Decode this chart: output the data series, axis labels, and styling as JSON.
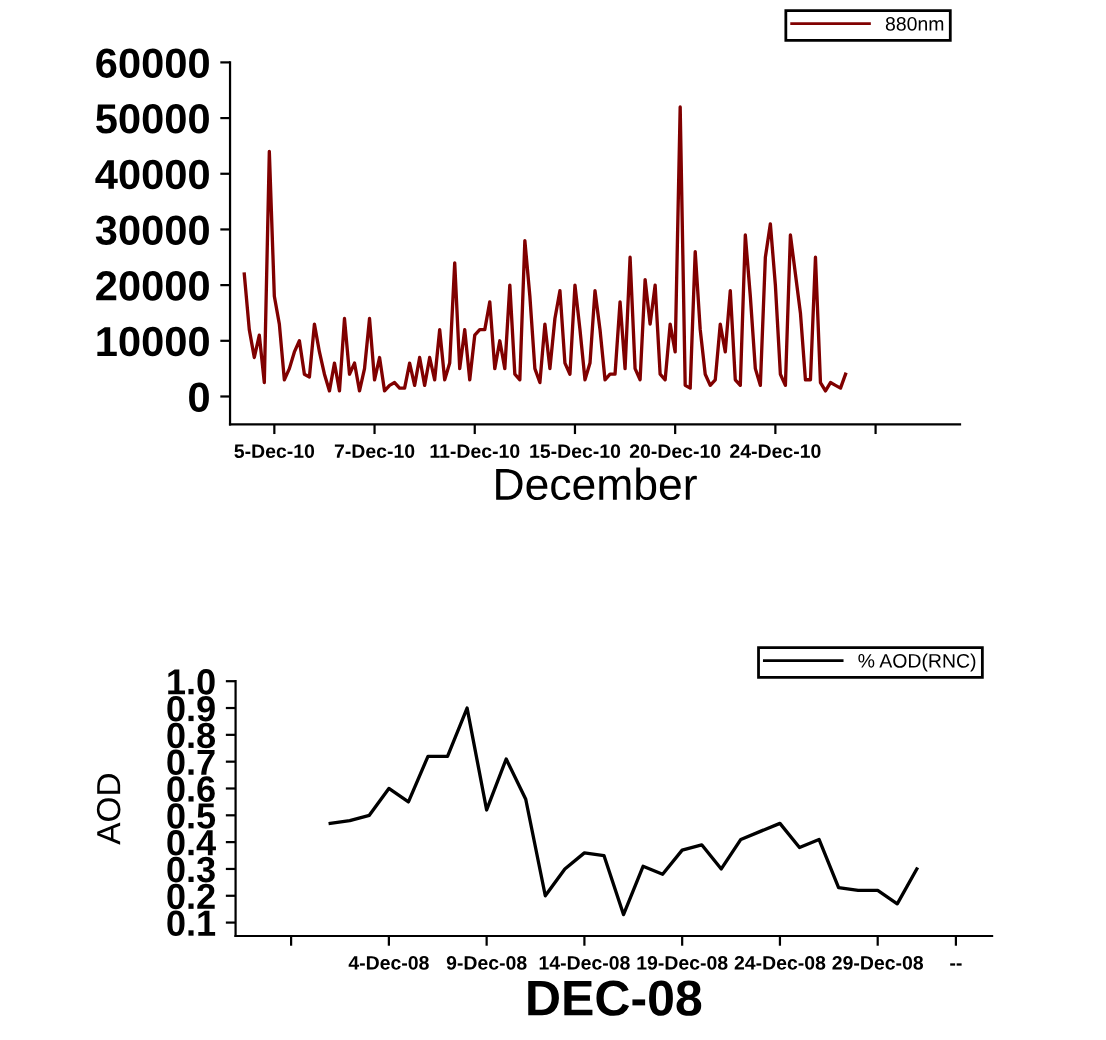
{
  "chart_data": [
    {
      "type": "line",
      "xlabel": "December",
      "legend": "top right",
      "grid": false,
      "ylim": [
        -5000,
        60000
      ],
      "yticks": [
        0,
        10000,
        20000,
        30000,
        40000,
        50000,
        60000
      ],
      "categories": [
        null,
        null,
        null,
        null,
        null,
        null,
        "5-Dec-10",
        null,
        null,
        null,
        null,
        null,
        null,
        null,
        null,
        null,
        null,
        null,
        null,
        null,
        null,
        null,
        null,
        null,
        null,
        null,
        "7-Dec-10",
        null,
        null,
        null,
        null,
        null,
        null,
        null,
        null,
        null,
        null,
        null,
        null,
        null,
        null,
        null,
        null,
        null,
        null,
        null,
        "11-Dec-10",
        null,
        null,
        null,
        null,
        null,
        null,
        null,
        null,
        null,
        null,
        null,
        null,
        null,
        null,
        null,
        null,
        null,
        null,
        null,
        "15-Dec-10",
        null,
        null,
        null,
        null,
        null,
        null,
        null,
        null,
        null,
        null,
        null,
        null,
        null,
        null,
        null,
        null,
        null,
        null,
        null,
        "20-Dec-10",
        null,
        null,
        null,
        null,
        null,
        null,
        null,
        null,
        null,
        null,
        null,
        null,
        null,
        null,
        null,
        null,
        null,
        null,
        null,
        "24-Dec-10",
        null,
        null,
        null,
        null,
        null,
        null,
        null,
        null,
        null,
        null,
        null,
        null,
        null,
        null,
        null,
        null,
        null,
        null,
        null,
        null,
        null,
        null,
        null,
        null,
        null,
        null,
        null,
        null,
        null,
        null
      ],
      "series": [
        {
          "name": "880nm",
          "color": "#800000",
          "values": [
            22000,
            12000,
            7000,
            11000,
            2500,
            44000,
            18000,
            13000,
            3000,
            5000,
            8000,
            10000,
            4000,
            3500,
            13000,
            8000,
            4000,
            1000,
            6000,
            1000,
            14000,
            4000,
            6000,
            1000,
            5000,
            14000,
            3000,
            7000,
            1000,
            2000,
            2500,
            1500,
            1500,
            6000,
            2000,
            7000,
            2000,
            7000,
            3000,
            12000,
            3000,
            6000,
            24000,
            5000,
            12000,
            3000,
            11000,
            12000,
            12000,
            17000,
            5000,
            10000,
            5000,
            20000,
            4000,
            3000,
            28000,
            18000,
            5000,
            2500,
            13000,
            5000,
            14000,
            19000,
            6000,
            4000,
            20000,
            12000,
            3000,
            6000,
            19000,
            12000,
            3000,
            4000,
            4000,
            17000,
            5000,
            25000,
            5000,
            3000,
            21000,
            13000,
            20000,
            4000,
            3000,
            13000,
            8000,
            52000,
            2000,
            1500,
            26000,
            12000,
            4000,
            2000,
            3000,
            13000,
            8000,
            19000,
            3000,
            2000,
            29000,
            18000,
            5000,
            2000,
            25000,
            31000,
            20000,
            4000,
            2000,
            29000,
            22000,
            15000,
            3000,
            3000,
            25000,
            2500,
            1000,
            2500,
            2000,
            1500,
            4000,
            null,
            null,
            null,
            null,
            null,
            null,
            null,
            null,
            null,
            null,
            null,
            null,
            null,
            null,
            null,
            null
          ]
        }
      ]
    },
    {
      "type": "line",
      "xlabel": "DEC-08",
      "ylabel": "AOD",
      "legend": "top right",
      "grid": false,
      "ylim": [
        0.05,
        1.0
      ],
      "yticks": [
        {
          "value": 0.1,
          "label": "0.1"
        },
        {
          "value": 0.2,
          "label": "0.2"
        },
        {
          "value": 0.3,
          "label": "0.3"
        },
        {
          "value": 0.4,
          "label": "0.4"
        },
        {
          "value": 0.5,
          "label": "0.5"
        },
        {
          "value": 0.6,
          "label": "0.6"
        },
        {
          "value": 0.7,
          "label": "0.7"
        },
        {
          "value": 0.8,
          "label": "0.8"
        },
        {
          "value": 0.9,
          "label": "0.9"
        },
        {
          "value": 1.0,
          "label": "1.0"
        }
      ],
      "categories": [
        null,
        null,
        null,
        null,
        null,
        null,
        null,
        "4-Dec-08",
        null,
        null,
        null,
        null,
        "9-Dec-08",
        null,
        null,
        null,
        null,
        "14-Dec-08",
        null,
        null,
        null,
        null,
        "19-Dec-08",
        null,
        null,
        null,
        null,
        "24-Dec-08",
        null,
        null,
        null,
        null,
        "29-Dec-08",
        null,
        null,
        null,
        "--"
      ],
      "series": [
        {
          "name": "% AOD(RNC)",
          "color": "#000000",
          "values": [
            null,
            null,
            null,
            null,
            0.47,
            0.48,
            0.5,
            0.6,
            0.55,
            0.72,
            0.72,
            0.9,
            0.52,
            0.71,
            0.56,
            0.2,
            0.3,
            0.36,
            0.35,
            0.13,
            0.31,
            0.28,
            0.37,
            0.39,
            0.3,
            0.41,
            0.44,
            0.47,
            0.38,
            0.41,
            0.23,
            0.22,
            0.22,
            0.17,
            0.3,
            null,
            null
          ]
        }
      ]
    }
  ]
}
